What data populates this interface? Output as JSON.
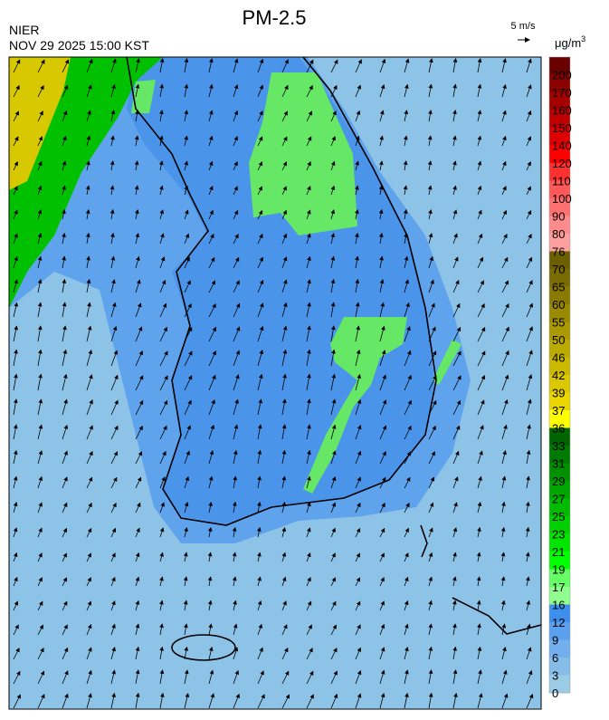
{
  "header": {
    "title": "PM-2.5",
    "agency": "NIER",
    "datetime": "NOV 29 2025 15:00 KST"
  },
  "wind_scale": {
    "label": "5 m/s"
  },
  "colorbar": {
    "unit": "μg/m",
    "unit_sup": "3",
    "ticks": [
      200,
      170,
      160,
      150,
      140,
      120,
      110,
      100,
      90,
      80,
      76,
      70,
      65,
      60,
      55,
      50,
      46,
      42,
      39,
      37,
      36,
      33,
      31,
      29,
      27,
      25,
      23,
      21,
      19,
      17,
      16,
      12,
      9,
      6,
      3,
      0
    ],
    "colors": [
      "#6b0000",
      "#8b0000",
      "#a50000",
      "#c00000",
      "#dd0000",
      "#ff0000",
      "#ff3030",
      "#ff5858",
      "#ff7070",
      "#ff8c8c",
      "#ffa0a0",
      "#6b5f00",
      "#7a6c00",
      "#8a7b00",
      "#9a8a00",
      "#aa9900",
      "#bbaa00",
      "#cbb900",
      "#dbc800",
      "#ebd700",
      "#ffff00",
      "#006400",
      "#007a00",
      "#009000",
      "#00a600",
      "#00bb00",
      "#00d000",
      "#00e600",
      "#00ff00",
      "#66ff66",
      "#90ff90",
      "#3d8fee",
      "#5aa0ee",
      "#72afec",
      "#86bde8",
      "#9ccbe6"
    ]
  }
}
